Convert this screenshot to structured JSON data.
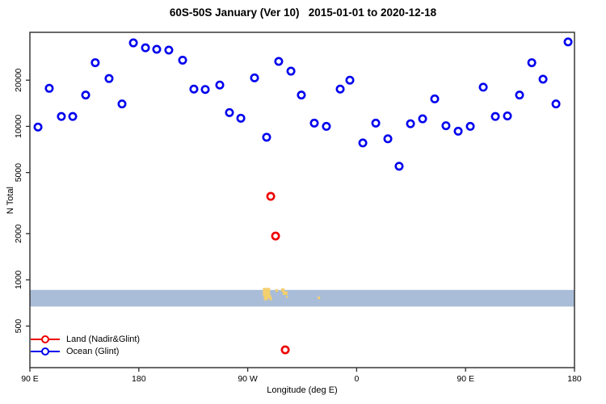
{
  "title": "60S-50S January (Ver 10)   2015-01-01 to 2020-12-18",
  "axes": {
    "x": {
      "label": "Longitude (deg E)"
    },
    "y": {
      "label": "N Total"
    }
  },
  "legend": {
    "position": "bottom-left",
    "items": [
      {
        "label": "Land (Nadir&Glint)",
        "color": "#ee0000",
        "marker": "open-circle-on-line"
      },
      {
        "label": "Ocean (Glint)",
        "color": "#0000ee",
        "marker": "open-circle-on-line"
      }
    ]
  },
  "chart_data": {
    "type": "scatter",
    "title": "60S-50S January (Ver 10)   2015-01-01 to 2020-12-18",
    "xlabel": "Longitude (deg E)",
    "ylabel": "N Total",
    "x_axis": {
      "note": "longitude axis starting at 90E heading east, spanning 450 degrees",
      "span_deg": 450,
      "ticks": [
        {
          "deg": 0,
          "label": "90 E"
        },
        {
          "deg": 90,
          "label": "180"
        },
        {
          "deg": 180,
          "label": "90 W"
        },
        {
          "deg": 270,
          "label": "0"
        },
        {
          "deg": 360,
          "label": "90 E"
        },
        {
          "deg": 450,
          "label": "180"
        }
      ]
    },
    "y_axis": {
      "scale": "log10",
      "range": [
        268,
        41000
      ],
      "ticks": [
        {
          "value": 500,
          "label": "500"
        },
        {
          "value": 1000,
          "label": "1000"
        },
        {
          "value": 2000,
          "label": "2000"
        },
        {
          "value": 5000,
          "label": "5000"
        },
        {
          "value": 10000,
          "label": "10000"
        },
        {
          "value": 20000,
          "label": "20000"
        }
      ]
    },
    "grid": false,
    "series": [
      {
        "name": "Ocean (Glint)",
        "color": "#0000ee",
        "marker": "open-circle",
        "points": [
          {
            "deg": 6.7,
            "n": 9900
          },
          {
            "deg": 16.0,
            "n": 17700
          },
          {
            "deg": 26.0,
            "n": 11600
          },
          {
            "deg": 35.4,
            "n": 11600
          },
          {
            "deg": 46.1,
            "n": 16000
          },
          {
            "deg": 54.0,
            "n": 26000
          },
          {
            "deg": 65.4,
            "n": 20500
          },
          {
            "deg": 76.1,
            "n": 14000
          },
          {
            "deg": 85.5,
            "n": 35000
          },
          {
            "deg": 95.5,
            "n": 32500
          },
          {
            "deg": 104.8,
            "n": 31800
          },
          {
            "deg": 114.8,
            "n": 31400
          },
          {
            "deg": 126.2,
            "n": 27000
          },
          {
            "deg": 135.5,
            "n": 17500
          },
          {
            "deg": 144.9,
            "n": 17400
          },
          {
            "deg": 156.9,
            "n": 18600
          },
          {
            "deg": 164.9,
            "n": 12300
          },
          {
            "deg": 174.3,
            "n": 11300
          },
          {
            "deg": 185.6,
            "n": 20700
          },
          {
            "deg": 195.6,
            "n": 8500
          },
          {
            "deg": 205.6,
            "n": 26500
          },
          {
            "deg": 215.7,
            "n": 22900
          },
          {
            "deg": 224.3,
            "n": 16000
          },
          {
            "deg": 235.0,
            "n": 10500
          },
          {
            "deg": 245.0,
            "n": 10000
          },
          {
            "deg": 256.4,
            "n": 17500
          },
          {
            "deg": 264.4,
            "n": 20000
          },
          {
            "deg": 275.1,
            "n": 7800
          },
          {
            "deg": 285.8,
            "n": 10500
          },
          {
            "deg": 295.8,
            "n": 8300
          },
          {
            "deg": 305.1,
            "n": 5500
          },
          {
            "deg": 314.5,
            "n": 10400
          },
          {
            "deg": 324.5,
            "n": 11200
          },
          {
            "deg": 334.5,
            "n": 15100
          },
          {
            "deg": 343.8,
            "n": 10100
          },
          {
            "deg": 353.9,
            "n": 9300
          },
          {
            "deg": 363.9,
            "n": 10000
          },
          {
            "deg": 374.6,
            "n": 18000
          },
          {
            "deg": 384.6,
            "n": 11600
          },
          {
            "deg": 394.6,
            "n": 11700
          },
          {
            "deg": 404.6,
            "n": 16000
          },
          {
            "deg": 414.7,
            "n": 26000
          },
          {
            "deg": 424.0,
            "n": 20300
          },
          {
            "deg": 434.7,
            "n": 14000
          },
          {
            "deg": 444.7,
            "n": 35500
          }
        ]
      },
      {
        "name": "Land (Nadir&Glint)",
        "color": "#ee0000",
        "marker": "open-circle",
        "points": [
          {
            "deg": 199.0,
            "n": 3500
          },
          {
            "deg": 203.0,
            "n": 1930
          },
          {
            "deg": 211.0,
            "n": 350
          }
        ]
      }
    ],
    "map_strip": {
      "description": "horizontal latitude-strip map band across full longitude range; blue = ocean, yellow = land (southern South America and islands)",
      "ocean_color": "#a9bdd8",
      "land_color": "#f3cf6d",
      "n_range": [
        670,
        860
      ],
      "land_patches": [
        {
          "d0": 192.5,
          "d1": 198.5,
          "t0": -0.12,
          "t1": 0.35
        },
        {
          "d0": 193.3,
          "d1": 196.6,
          "t0": 0.3,
          "t1": 0.62
        },
        {
          "d0": 195.3,
          "d1": 199.3,
          "t0": 0.3,
          "t1": 0.5
        },
        {
          "d0": 197.9,
          "d1": 200.0,
          "t0": 0.42,
          "t1": 0.62
        },
        {
          "d0": 202.9,
          "d1": 204.9,
          "t0": -0.05,
          "t1": 0.12
        },
        {
          "d0": 207.6,
          "d1": 210.3,
          "t0": -0.1,
          "t1": 0.1
        },
        {
          "d0": 208.9,
          "d1": 212.9,
          "t0": 0.08,
          "t1": 0.3
        },
        {
          "d0": 211.6,
          "d1": 212.9,
          "t0": 0.35,
          "t1": 0.48
        },
        {
          "d0": 237.8,
          "d1": 239.8,
          "t0": 0.4,
          "t1": 0.55
        }
      ]
    }
  }
}
